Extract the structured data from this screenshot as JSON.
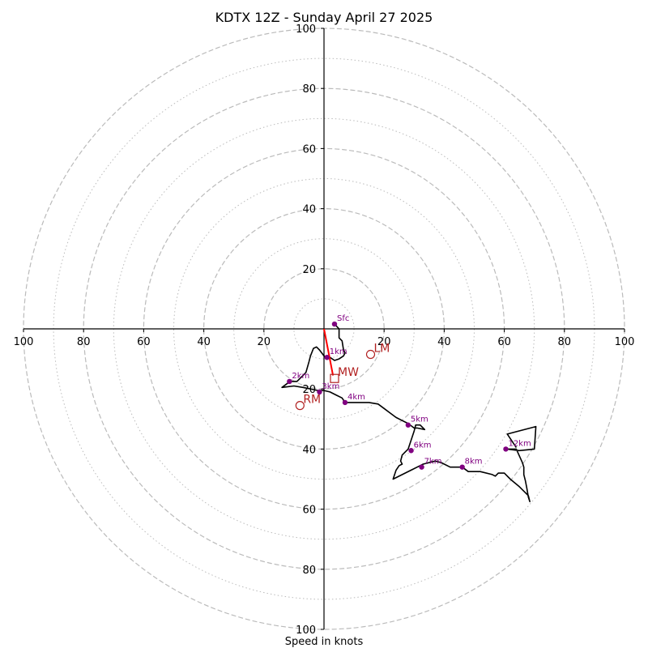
{
  "chart_data": {
    "type": "hodograph",
    "title": "KDTX 12Z - Sunday April 27 2025",
    "xlabel": "Speed in knots",
    "range": [
      -100,
      100
    ],
    "ring_major": [
      20,
      40,
      60,
      80,
      100
    ],
    "ring_minor": [
      10,
      30,
      50,
      70,
      90
    ],
    "x_ticks": [
      "100",
      "80",
      "60",
      "40",
      "20",
      "20",
      "40",
      "60",
      "80",
      "100"
    ],
    "y_ticks": [
      "100",
      "80",
      "60",
      "40",
      "20",
      "20",
      "40",
      "60",
      "80",
      "100"
    ],
    "grid": true,
    "colors": {
      "trace": "#000000",
      "markers": "#800080",
      "motion": "#b22222",
      "shear": "#ff0000",
      "grid": "#bbbbbb"
    },
    "trace": [
      [
        3.5,
        1.6
      ],
      [
        5,
        0
      ],
      [
        5,
        -3
      ],
      [
        6,
        -4
      ],
      [
        6.5,
        -7
      ],
      [
        7,
        -8
      ],
      [
        6.5,
        -9
      ],
      [
        5,
        -10
      ],
      [
        3.5,
        -10.5
      ],
      [
        2,
        -9.5
      ],
      [
        1,
        -9.5
      ],
      [
        0,
        -9
      ],
      [
        -1.5,
        -7
      ],
      [
        -2.5,
        -6
      ],
      [
        -3.5,
        -6.5
      ],
      [
        -4.5,
        -9
      ],
      [
        -5,
        -11
      ],
      [
        -6,
        -14.5
      ],
      [
        -7.5,
        -16
      ],
      [
        -9,
        -17.5
      ],
      [
        -11,
        -17.5
      ],
      [
        -12,
        -18
      ],
      [
        -14,
        -19.5
      ],
      [
        -10,
        -19
      ],
      [
        -7,
        -19.5
      ],
      [
        -2,
        -20.5
      ],
      [
        0,
        -20.5
      ],
      [
        2,
        -21
      ],
      [
        4,
        -22
      ],
      [
        6,
        -23
      ],
      [
        7,
        -24.5
      ],
      [
        10,
        -24.5
      ],
      [
        15,
        -24.5
      ],
      [
        18,
        -25
      ],
      [
        20,
        -26.5
      ],
      [
        22,
        -28
      ],
      [
        24,
        -29.5
      ],
      [
        26,
        -30.5
      ],
      [
        28,
        -31.5
      ],
      [
        30,
        -33
      ],
      [
        31,
        -33
      ],
      [
        33.5,
        -33.5
      ],
      [
        32,
        -32
      ],
      [
        30.5,
        -32
      ],
      [
        30,
        -34
      ],
      [
        29,
        -37
      ],
      [
        28,
        -40
      ],
      [
        27,
        -41
      ],
      [
        26,
        -42
      ],
      [
        25.5,
        -44
      ],
      [
        26,
        -45
      ],
      [
        25,
        -45.5
      ],
      [
        24,
        -47
      ],
      [
        23,
        -50
      ],
      [
        29,
        -47
      ],
      [
        31,
        -46
      ],
      [
        33,
        -45
      ],
      [
        37,
        -44
      ],
      [
        39,
        -44.5
      ],
      [
        42,
        -46
      ],
      [
        45,
        -46
      ],
      [
        46,
        -46
      ],
      [
        48,
        -47.5
      ],
      [
        52,
        -47.5
      ],
      [
        56,
        -48.5
      ],
      [
        57,
        -49
      ],
      [
        58,
        -48
      ],
      [
        60,
        -48
      ],
      [
        62,
        -50
      ],
      [
        65,
        -52.5
      ],
      [
        68,
        -55.5
      ],
      [
        68.5,
        -57.5
      ],
      [
        68,
        -56
      ],
      [
        67.5,
        -53
      ],
      [
        67,
        -50.5
      ],
      [
        66.5,
        -48.5
      ],
      [
        66.5,
        -46
      ],
      [
        66,
        -44.5
      ],
      [
        64,
        -40
      ],
      [
        61,
        -40
      ],
      [
        60.5,
        -40
      ],
      [
        61,
        -40
      ],
      [
        65,
        -40.5
      ],
      [
        70,
        -40
      ],
      [
        70.5,
        -32.5
      ],
      [
        61,
        -35
      ],
      [
        64,
        -39.5
      ]
    ],
    "markers": [
      {
        "label": "Sfc",
        "u": 3.5,
        "v": 1.6
      },
      {
        "label": "1km",
        "u": 1,
        "v": -9.5
      },
      {
        "label": "2km",
        "u": -11.5,
        "v": -17.5
      },
      {
        "label": "3km",
        "u": -1.5,
        "v": -21
      },
      {
        "label": "4km",
        "u": 7,
        "v": -24.5
      },
      {
        "label": "5km",
        "u": 28,
        "v": -32
      },
      {
        "label": "6km",
        "u": 29,
        "v": -40.5
      },
      {
        "label": "7km",
        "u": 32.5,
        "v": -46
      },
      {
        "label": "8km",
        "u": 46,
        "v": -46
      },
      {
        "label": "12km",
        "u": 60.5,
        "v": -40
      }
    ],
    "shear_vector": {
      "from": [
        0,
        0
      ],
      "to": [
        3,
        -15.5
      ]
    },
    "storm_motion": [
      {
        "label": "LM",
        "shape": "circle",
        "u": 15.5,
        "v": -8.5
      },
      {
        "label": "MW",
        "shape": "square",
        "u": 3.5,
        "v": -16.5
      },
      {
        "label": "RM",
        "shape": "circle",
        "u": -8,
        "v": -25.5
      }
    ]
  }
}
